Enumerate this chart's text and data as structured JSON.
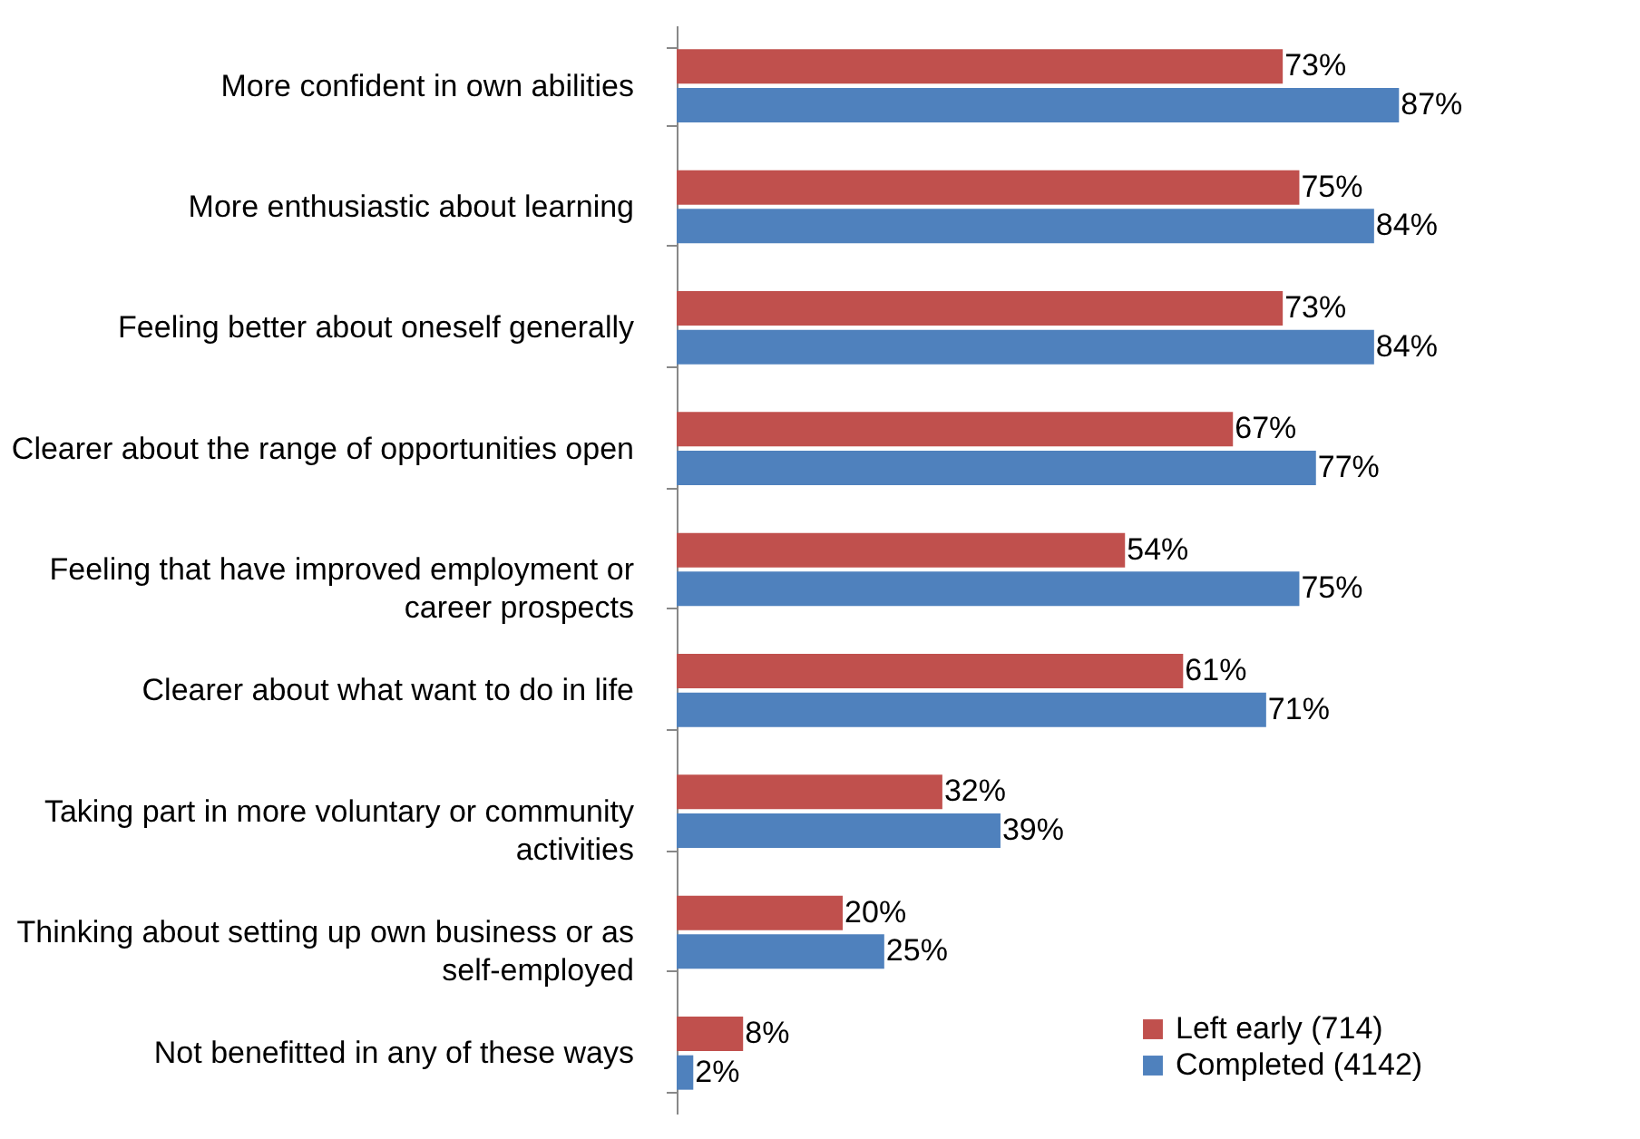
{
  "chart_data": {
    "type": "bar",
    "orientation": "horizontal",
    "legend": "bottom right",
    "grid": false,
    "categories": [
      "More confident in own abilities",
      "More enthusiastic about learning",
      "Feeling better about oneself generally",
      "Clearer about the range of opportunities open",
      "Feeling that have improved employment or career prospects",
      "Clearer about what want to do in life",
      "Taking part in more voluntary or community activities",
      "Thinking about setting up own business or as self-employed",
      "Not benefitted in any of these ways"
    ],
    "series": [
      {
        "name": "Left early (714)",
        "color": "#c0504d",
        "values": [
          73,
          75,
          73,
          67,
          54,
          61,
          32,
          20,
          8
        ],
        "value_labels": [
          "73%",
          "75%",
          "73%",
          "67%",
          "54%",
          "61%",
          "32%",
          "20%",
          "8%"
        ]
      },
      {
        "name": "Completed (4142)",
        "color": "#4f81bd",
        "values": [
          87,
          84,
          84,
          77,
          75,
          71,
          39,
          25,
          2
        ],
        "value_labels": [
          "87%",
          "84%",
          "84%",
          "77%",
          "75%",
          "71%",
          "39%",
          "25%",
          "2%"
        ]
      }
    ]
  }
}
